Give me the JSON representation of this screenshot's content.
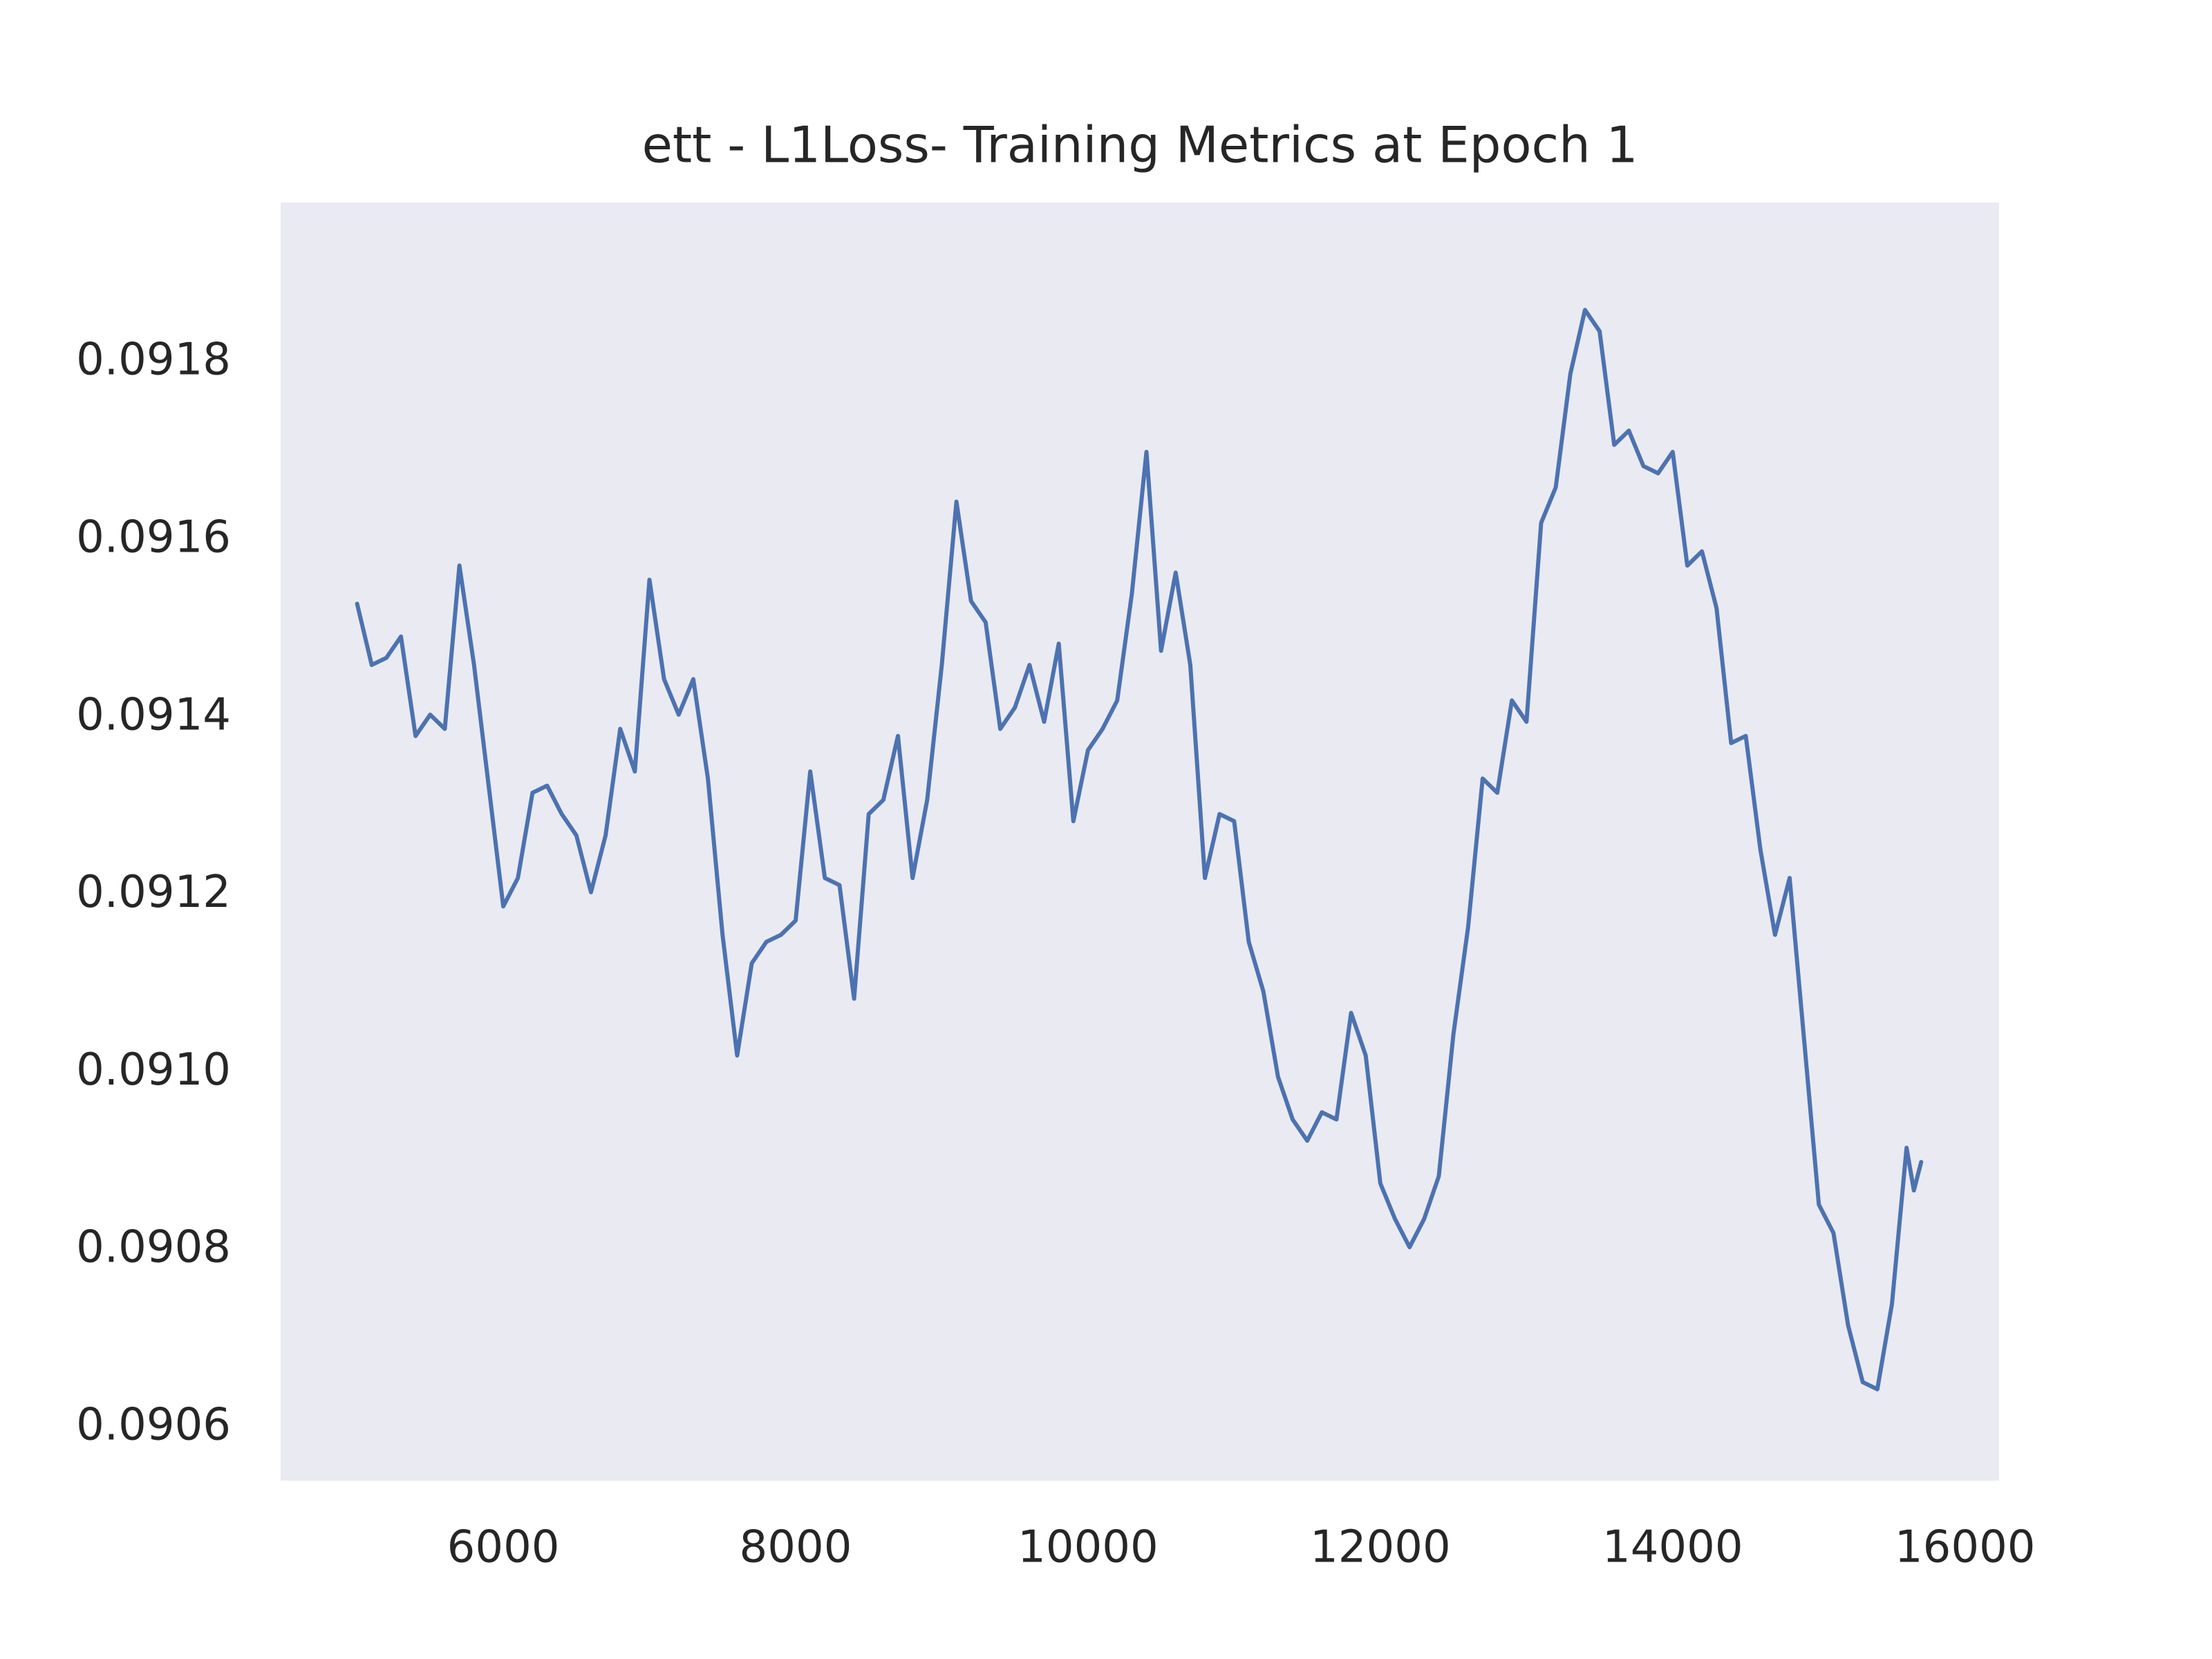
{
  "chart_data": {
    "type": "line",
    "title": "ett - L1Loss- Training Metrics at Epoch 1",
    "x": [
      5000,
      5100,
      5200,
      5300,
      5400,
      5500,
      5600,
      5700,
      5800,
      5900,
      6000,
      6100,
      6200,
      6300,
      6400,
      6500,
      6600,
      6700,
      6800,
      6900,
      7000,
      7100,
      7200,
      7300,
      7400,
      7500,
      7600,
      7700,
      7800,
      7900,
      8000,
      8100,
      8200,
      8300,
      8400,
      8500,
      8600,
      8700,
      8800,
      8900,
      9000,
      9100,
      9200,
      9300,
      9400,
      9500,
      9600,
      9700,
      9800,
      9900,
      10000,
      10100,
      10200,
      10300,
      10400,
      10500,
      10600,
      10700,
      10800,
      10900,
      11000,
      11100,
      11200,
      11300,
      11400,
      11500,
      11600,
      11700,
      11800,
      11900,
      12000,
      12100,
      12200,
      12300,
      12400,
      12500,
      12600,
      12700,
      12800,
      12900,
      13000,
      13100,
      13200,
      13300,
      13400,
      13500,
      13600,
      13700,
      13800,
      13900,
      14000,
      14100,
      14200,
      14300,
      14400,
      14500,
      14600,
      14700,
      14800,
      14900,
      15000,
      15100,
      15200,
      15300,
      15400,
      15500,
      15600,
      15650,
      15700
    ],
    "series": [
      {
        "color": "#4c72b0",
        "values": [
          0.091528,
          0.091459,
          0.091467,
          0.091491,
          0.091379,
          0.091403,
          0.091387,
          0.091571,
          0.091459,
          0.091323,
          0.091187,
          0.091219,
          0.091315,
          0.091323,
          0.091291,
          0.091267,
          0.091203,
          0.091267,
          0.091387,
          0.091339,
          0.091555,
          0.091443,
          0.091403,
          0.091443,
          0.091331,
          0.091155,
          0.091019,
          0.091123,
          0.091147,
          0.091155,
          0.091171,
          0.091339,
          0.091219,
          0.091211,
          0.091083,
          0.091291,
          0.091307,
          0.091379,
          0.091219,
          0.091307,
          0.091459,
          0.091643,
          0.091531,
          0.091507,
          0.091387,
          0.091411,
          0.091459,
          0.091395,
          0.091483,
          0.091283,
          0.091363,
          0.091387,
          0.091419,
          0.091539,
          0.091699,
          0.091475,
          0.091563,
          0.091459,
          0.091219,
          0.091291,
          0.091283,
          0.091147,
          0.091091,
          0.090995,
          0.090947,
          0.090923,
          0.090955,
          0.090947,
          0.091067,
          0.091019,
          0.090875,
          0.090835,
          0.090803,
          0.090835,
          0.090883,
          0.091043,
          0.091163,
          0.091331,
          0.091315,
          0.091419,
          0.091395,
          0.091619,
          0.091659,
          0.091787,
          0.091859,
          0.091835,
          0.091707,
          0.091723,
          0.091683,
          0.091675,
          0.091699,
          0.091571,
          0.091587,
          0.091523,
          0.091371,
          0.091379,
          0.091251,
          0.091155,
          0.091219,
          0.091035,
          0.090851,
          0.090819,
          0.090715,
          0.090651,
          0.090643,
          0.090739,
          0.090915,
          0.090867,
          0.090899
        ]
      }
    ],
    "xlim": [
      4477,
      16233
    ],
    "ylim": [
      0.09054,
      0.09198
    ],
    "xticks": [
      6000,
      8000,
      10000,
      12000,
      14000,
      16000
    ],
    "yticks": [
      0.0906,
      0.0908,
      {
        "value": 0.091,
        "label": "0.0910"
      },
      0.0912,
      0.0914,
      0.0916,
      0.0918
    ],
    "grid": false,
    "background": "#eaeaf2"
  }
}
